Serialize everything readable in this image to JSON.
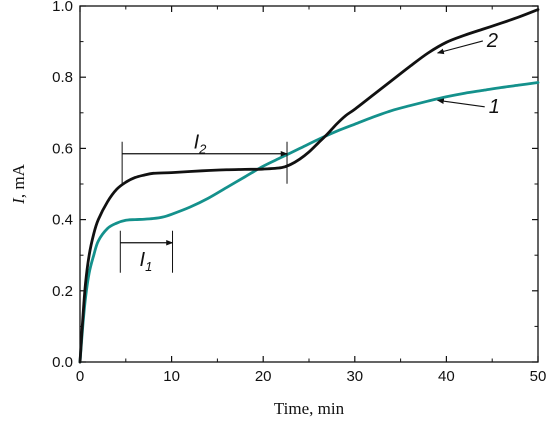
{
  "chart_data": {
    "type": "line",
    "title": "",
    "xlabel": "Time, min",
    "ylabel_symbol": "I",
    "ylabel_unit": ", mA",
    "xlim": [
      0,
      50
    ],
    "ylim": [
      0,
      1.0
    ],
    "xticks": [
      0,
      10,
      20,
      30,
      40,
      50
    ],
    "yticks": [
      "0.0",
      "0.2",
      "0.4",
      "0.6",
      "0.8",
      "1.0"
    ],
    "grid": false,
    "series": [
      {
        "name": "1",
        "color": "#14918c",
        "x": [
          0,
          0.3,
          0.6,
          1,
          1.5,
          2,
          3,
          4,
          5,
          6,
          7,
          8,
          9,
          10,
          12,
          14,
          16,
          18,
          20,
          22,
          24,
          26,
          28,
          30,
          32,
          34,
          36,
          38,
          40,
          42,
          44,
          46,
          48,
          50
        ],
        "y": [
          0.0,
          0.1,
          0.18,
          0.25,
          0.3,
          0.34,
          0.375,
          0.39,
          0.398,
          0.4,
          0.401,
          0.403,
          0.407,
          0.415,
          0.435,
          0.46,
          0.49,
          0.52,
          0.55,
          0.575,
          0.6,
          0.625,
          0.648,
          0.668,
          0.688,
          0.706,
          0.72,
          0.733,
          0.745,
          0.755,
          0.763,
          0.771,
          0.778,
          0.785
        ]
      },
      {
        "name": "2",
        "color": "#111111",
        "x": [
          0,
          0.3,
          0.6,
          1,
          1.5,
          2,
          3,
          4,
          5,
          6,
          7,
          8,
          10,
          12,
          14,
          16,
          18,
          20,
          22,
          23,
          24,
          25,
          26,
          27,
          28,
          29,
          30,
          32,
          34,
          36,
          38,
          40,
          42,
          44,
          46,
          48,
          50
        ],
        "y": [
          0.0,
          0.12,
          0.22,
          0.3,
          0.36,
          0.4,
          0.45,
          0.485,
          0.505,
          0.518,
          0.525,
          0.53,
          0.532,
          0.535,
          0.538,
          0.54,
          0.541,
          0.542,
          0.546,
          0.555,
          0.57,
          0.59,
          0.615,
          0.64,
          0.668,
          0.692,
          0.71,
          0.75,
          0.79,
          0.83,
          0.868,
          0.898,
          0.918,
          0.935,
          0.952,
          0.97,
          0.99
        ]
      }
    ],
    "annotations": [
      {
        "id": "I1",
        "symbol": "I",
        "sub": "1",
        "x_start": 4.4,
        "x_end": 10.1,
        "y_arrow": 0.335,
        "y_label": 0.27,
        "x_label": 6.5
      },
      {
        "id": "I2",
        "symbol": "I",
        "sub": "2",
        "x_start": 4.6,
        "x_end": 22.6,
        "y_arrow": 0.585,
        "y_label": 0.6,
        "x_label": 12.4
      }
    ],
    "series_labels": [
      {
        "text": "2",
        "x_label": 44.2,
        "y_label": 0.885,
        "x_pt": 38.6,
        "y_pt": 0.868
      },
      {
        "text": "1",
        "x_label": 44.4,
        "y_label": 0.7,
        "x_pt": 38.6,
        "y_pt": 0.735
      }
    ]
  }
}
